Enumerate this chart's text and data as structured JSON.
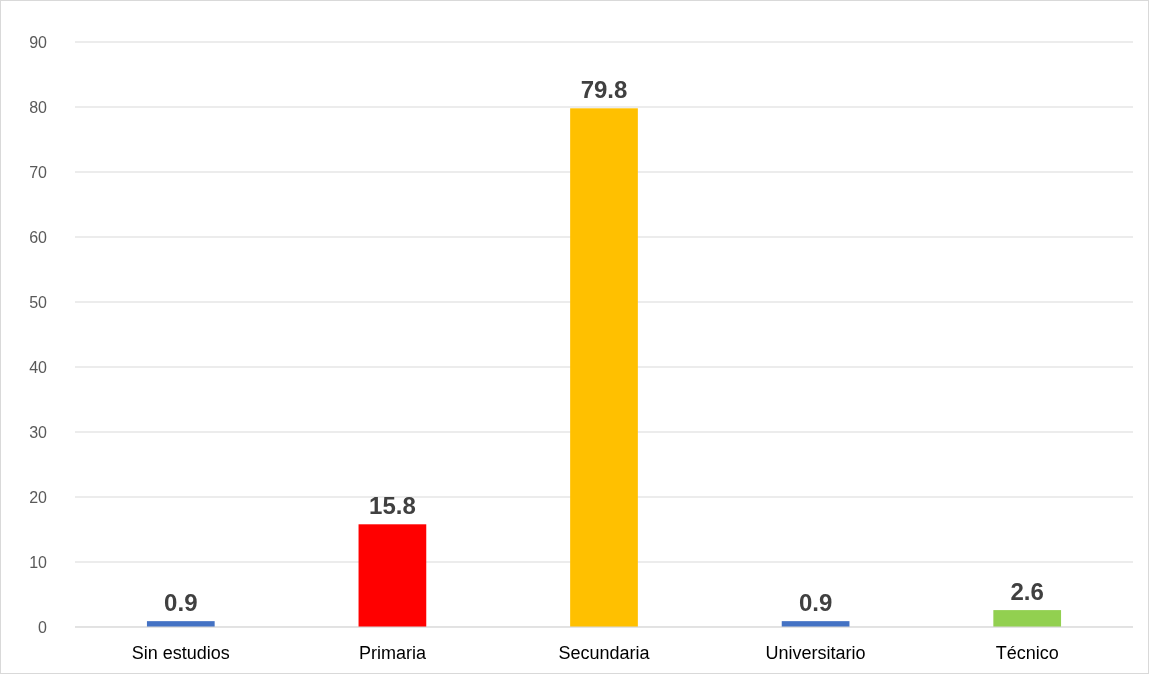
{
  "chart_data": {
    "type": "bar",
    "categories": [
      "Sin estudios",
      "Primaria",
      "Secundaria",
      "Universitario",
      "Técnico"
    ],
    "values": [
      0.9,
      15.8,
      79.8,
      0.9,
      2.6
    ],
    "colors": [
      "#4472c4",
      "#ff0000",
      "#ffc000",
      "#4472c4",
      "#92d050"
    ],
    "ylim": [
      0,
      90
    ],
    "yticks": [
      0,
      10,
      20,
      30,
      40,
      50,
      60,
      70,
      80,
      90
    ],
    "grid": "y",
    "data_labels": true
  }
}
